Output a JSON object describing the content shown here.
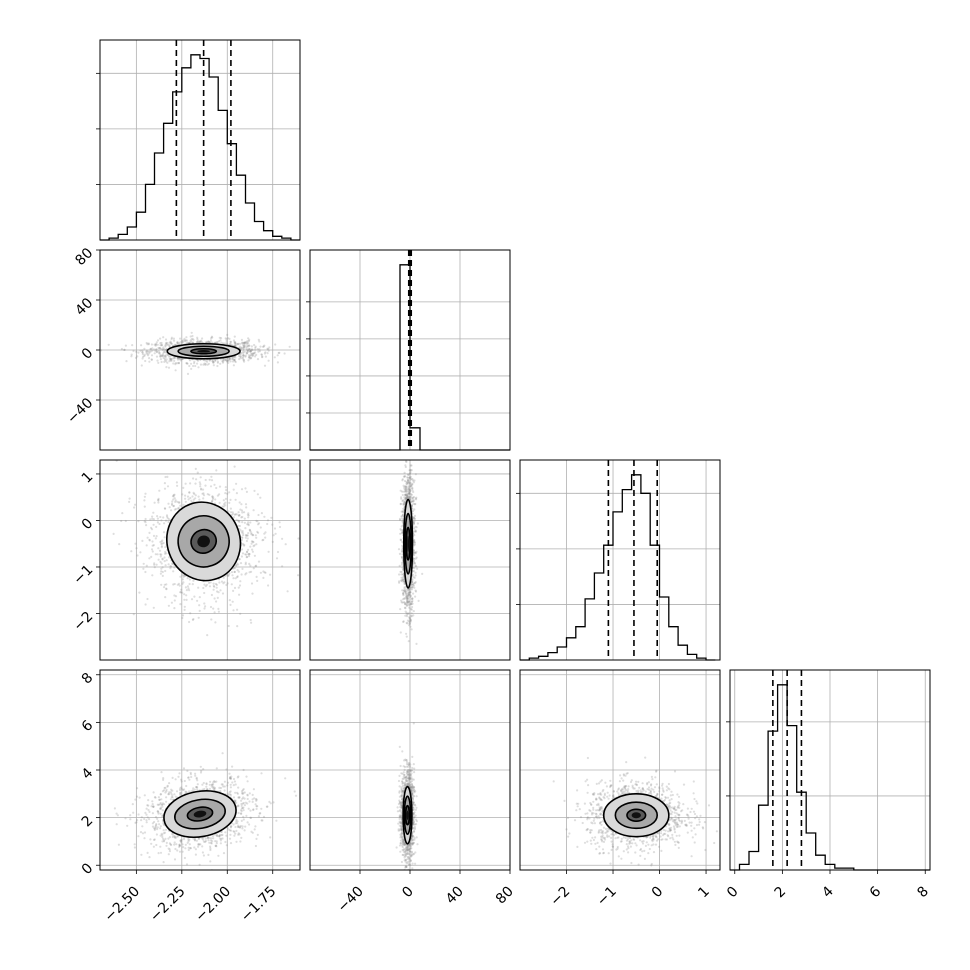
{
  "chart_data": {
    "type": "corner",
    "params": [
      {
        "range": [
          -2.7,
          -1.6
        ],
        "ticks": [
          -2.5,
          -2.25,
          -2.0,
          -1.75
        ],
        "tick_labels": [
          "−2.50",
          "−2.25",
          "−2.00",
          "−1.75"
        ],
        "center": -2.13,
        "sigma": 0.15,
        "quantiles": [
          -2.28,
          -2.13,
          -1.98
        ]
      },
      {
        "range": [
          -80,
          80
        ],
        "ticks": [
          -40,
          0,
          40,
          80
        ],
        "tick_labels": [
          "−40",
          "0",
          "40",
          "80"
        ],
        "center": 0.0,
        "sigma": 2.0,
        "quantiles": [
          -1.0,
          0.0,
          1.0
        ]
      },
      {
        "range": [
          -3.0,
          1.3
        ],
        "ticks": [
          -2,
          -1,
          0,
          1
        ],
        "tick_labels": [
          "−2",
          "−1",
          "0",
          "1"
        ],
        "center": -0.55,
        "sigma": 0.55,
        "quantiles": [
          -1.1,
          -0.55,
          -0.05
        ]
      },
      {
        "range": [
          -0.2,
          8.2
        ],
        "ticks": [
          0,
          2,
          4,
          6,
          8
        ],
        "tick_labels": [
          "0",
          "2",
          "4",
          "6",
          "8"
        ],
        "center": 2.2,
        "sigma": 0.6,
        "quantiles": [
          1.6,
          2.2,
          2.8
        ]
      }
    ],
    "diag_hist": [
      {
        "bins": [
          -2.7,
          -2.65,
          -2.6,
          -2.55,
          -2.5,
          -2.45,
          -2.4,
          -2.35,
          -2.3,
          -2.25,
          -2.2,
          -2.15,
          -2.1,
          -2.05,
          -2.0,
          -1.95,
          -1.9,
          -1.85,
          -1.8,
          -1.75,
          -1.7,
          -1.65,
          -1.6
        ],
        "counts": [
          0,
          0.01,
          0.03,
          0.07,
          0.15,
          0.3,
          0.47,
          0.63,
          0.8,
          0.93,
          1.0,
          0.98,
          0.88,
          0.7,
          0.52,
          0.35,
          0.2,
          0.1,
          0.05,
          0.02,
          0.01,
          0
        ],
        "y_ticks": [
          0.3,
          0.6,
          0.9
        ]
      },
      {
        "bins": [
          -80,
          -72,
          -64,
          -56,
          -48,
          -40,
          -32,
          -24,
          -16,
          -8,
          0,
          8,
          16,
          24,
          32,
          40,
          48,
          56,
          64,
          72,
          80
        ],
        "counts": [
          0,
          0,
          0,
          0,
          0,
          0,
          0,
          0,
          0,
          1.0,
          0.12,
          0,
          0,
          0,
          0,
          0,
          0,
          0,
          0,
          0
        ],
        "y_ticks": [
          0.2,
          0.4,
          0.6,
          0.8
        ]
      },
      {
        "bins": [
          -3.0,
          -2.8,
          -2.6,
          -2.4,
          -2.2,
          -2.0,
          -1.8,
          -1.6,
          -1.4,
          -1.2,
          -1.0,
          -0.8,
          -0.6,
          -0.4,
          -0.2,
          0.0,
          0.2,
          0.4,
          0.6,
          0.8,
          1.0,
          1.2
        ],
        "counts": [
          0,
          0.01,
          0.02,
          0.04,
          0.07,
          0.12,
          0.18,
          0.33,
          0.47,
          0.62,
          0.8,
          0.92,
          1.0,
          0.9,
          0.62,
          0.34,
          0.18,
          0.08,
          0.03,
          0.01,
          0
        ],
        "y_ticks": [
          0.3,
          0.6,
          0.9
        ]
      },
      {
        "bins": [
          -0.2,
          0.2,
          0.6,
          1.0,
          1.4,
          1.8,
          2.2,
          2.6,
          3.0,
          3.4,
          3.8,
          4.2,
          4.6,
          5.0,
          5.4,
          5.8,
          6.2,
          6.6,
          7.0,
          7.4,
          7.8,
          8.2
        ],
        "counts": [
          0,
          0.03,
          0.1,
          0.35,
          0.75,
          1.0,
          0.78,
          0.42,
          0.2,
          0.08,
          0.03,
          0.01,
          0.01,
          0,
          0,
          0,
          0,
          0,
          0,
          0,
          0
        ],
        "y_ticks": [
          0.4,
          0.8
        ]
      }
    ],
    "pairs": [
      {
        "row": 1,
        "col": 0,
        "center": [
          -2.13,
          -1.0
        ],
        "levels": [
          [
            0.07,
            2.0
          ],
          [
            0.14,
            4.0
          ],
          [
            0.2,
            6.0
          ]
        ],
        "rot": 0
      },
      {
        "row": 2,
        "col": 0,
        "center": [
          -2.13,
          -0.45
        ],
        "levels": [
          [
            0.07,
            0.25
          ],
          [
            0.14,
            0.55
          ],
          [
            0.2,
            0.85
          ]
        ],
        "rot": -20
      },
      {
        "row": 2,
        "col": 1,
        "center": [
          -1.5,
          -0.5
        ],
        "levels": [
          [
            1.5,
            0.35
          ],
          [
            2.5,
            0.65
          ],
          [
            3.5,
            0.95
          ]
        ],
        "rot": 0
      },
      {
        "row": 3,
        "col": 0,
        "center": [
          -2.15,
          2.15
        ],
        "levels": [
          [
            0.07,
            0.28
          ],
          [
            0.14,
            0.6
          ],
          [
            0.2,
            0.95
          ]
        ],
        "rot": -10
      },
      {
        "row": 3,
        "col": 1,
        "center": [
          -2.0,
          2.1
        ],
        "levels": [
          [
            1.5,
            0.4
          ],
          [
            2.5,
            0.8
          ],
          [
            3.5,
            1.2
          ]
        ],
        "rot": 0
      },
      {
        "row": 3,
        "col": 2,
        "center": [
          -0.5,
          2.1
        ],
        "levels": [
          [
            0.2,
            0.25
          ],
          [
            0.45,
            0.55
          ],
          [
            0.7,
            0.9
          ]
        ],
        "rot": 0
      }
    ]
  }
}
